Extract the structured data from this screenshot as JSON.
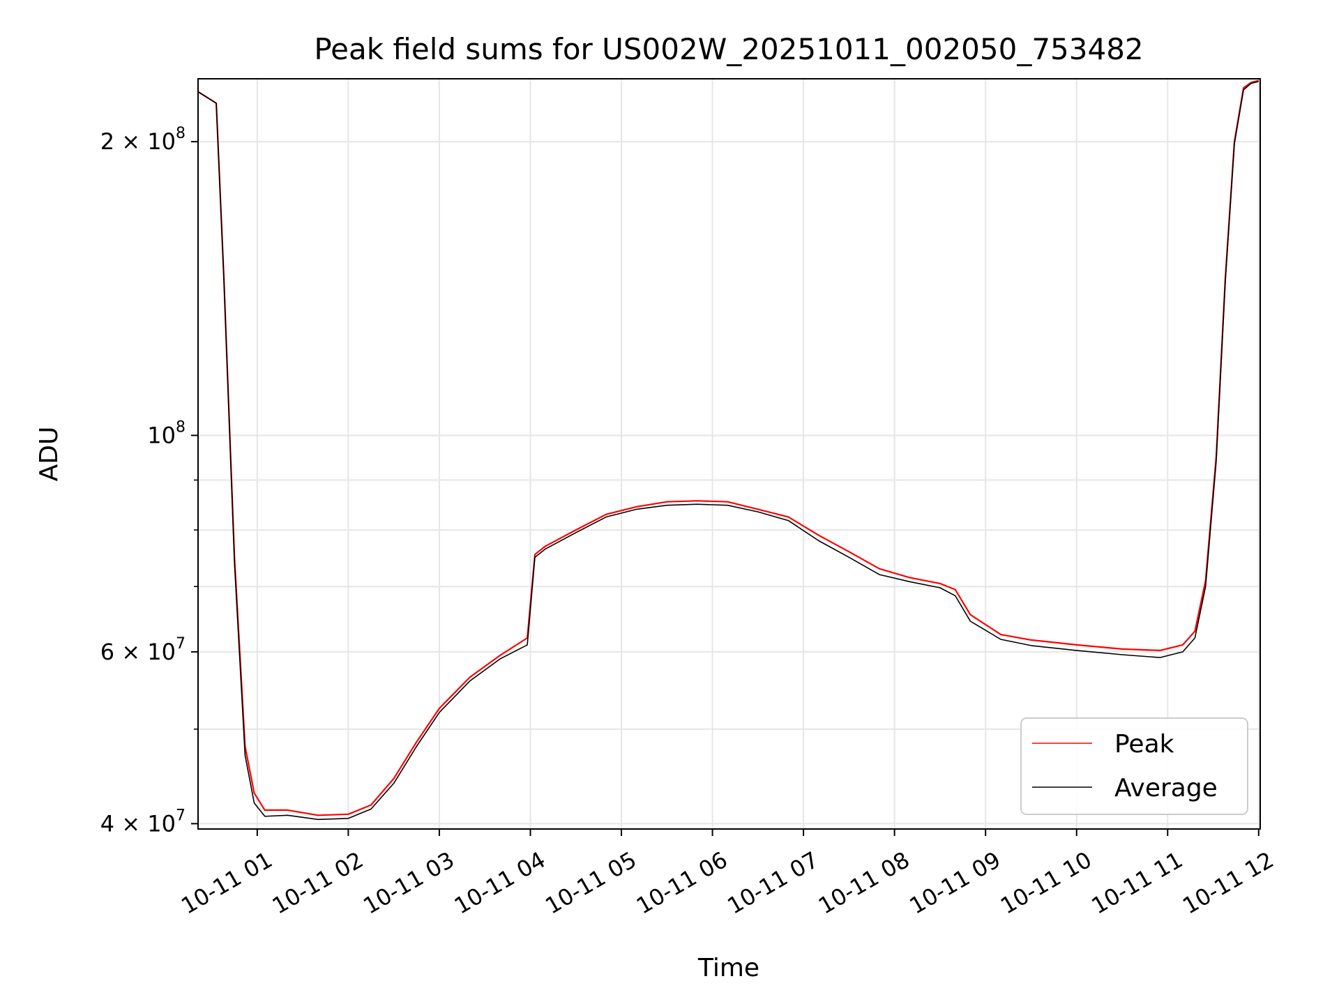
{
  "chart_data": {
    "type": "line",
    "title": "Peak field sums for US002W_20251011_002050_753482",
    "xlabel": "Time",
    "ylabel": "ADU",
    "yscale": "log",
    "xlim": [
      "2025-10-11 00:21",
      "2025-10-11 12:01"
    ],
    "ylim": [
      39500000,
      232000000
    ],
    "x_ticks": [
      {
        "value": "2025-10-11 01:00",
        "label": "10-11 01"
      },
      {
        "value": "2025-10-11 02:00",
        "label": "10-11 02"
      },
      {
        "value": "2025-10-11 03:00",
        "label": "10-11 03"
      },
      {
        "value": "2025-10-11 04:00",
        "label": "10-11 04"
      },
      {
        "value": "2025-10-11 05:00",
        "label": "10-11 05"
      },
      {
        "value": "2025-10-11 06:00",
        "label": "10-11 06"
      },
      {
        "value": "2025-10-11 07:00",
        "label": "10-11 07"
      },
      {
        "value": "2025-10-11 08:00",
        "label": "10-11 08"
      },
      {
        "value": "2025-10-11 09:00",
        "label": "10-11 09"
      },
      {
        "value": "2025-10-11 10:00",
        "label": "10-11 10"
      },
      {
        "value": "2025-10-11 11:00",
        "label": "10-11 11"
      },
      {
        "value": "2025-10-11 12:00",
        "label": "10-11 12"
      }
    ],
    "y_major_ticks": [
      {
        "value": 40000000,
        "base": "4",
        "exp": "7"
      },
      {
        "value": 60000000,
        "base": "6",
        "exp": "7"
      },
      {
        "value": 100000000,
        "base": "",
        "exp": "8"
      },
      {
        "value": 200000000,
        "base": "2",
        "exp": "8"
      }
    ],
    "y_minor_ticks": [
      50000000,
      70000000,
      80000000,
      90000000
    ],
    "grid": true,
    "legend_position": "lower-right",
    "series": [
      {
        "name": "Peak",
        "color": "#ff0000",
        "x": [
          "2025-10-11 00:21",
          "2025-10-11 00:33",
          "2025-10-11 00:38",
          "2025-10-11 00:45",
          "2025-10-11 00:52",
          "2025-10-11 00:58",
          "2025-10-11 01:05",
          "2025-10-11 01:20",
          "2025-10-11 01:40",
          "2025-10-11 02:00",
          "2025-10-11 02:15",
          "2025-10-11 02:30",
          "2025-10-11 02:45",
          "2025-10-11 03:00",
          "2025-10-11 03:20",
          "2025-10-11 03:40",
          "2025-10-11 03:58",
          "2025-10-11 04:03",
          "2025-10-11 04:10",
          "2025-10-11 04:30",
          "2025-10-11 04:50",
          "2025-10-11 05:10",
          "2025-10-11 05:30",
          "2025-10-11 05:50",
          "2025-10-11 06:10",
          "2025-10-11 06:30",
          "2025-10-11 06:50",
          "2025-10-11 07:10",
          "2025-10-11 07:30",
          "2025-10-11 07:50",
          "2025-10-11 08:10",
          "2025-10-11 08:30",
          "2025-10-11 08:40",
          "2025-10-11 08:50",
          "2025-10-11 09:10",
          "2025-10-11 09:30",
          "2025-10-11 10:00",
          "2025-10-11 10:30",
          "2025-10-11 10:55",
          "2025-10-11 11:10",
          "2025-10-11 11:18",
          "2025-10-11 11:25",
          "2025-10-11 11:32",
          "2025-10-11 11:38",
          "2025-10-11 11:44",
          "2025-10-11 11:50",
          "2025-10-11 11:55",
          "2025-10-11 12:00"
        ],
        "y": [
          225000000,
          219000000,
          145000000,
          75000000,
          48000000,
          43000000,
          41300000,
          41300000,
          40800000,
          40900000,
          41800000,
          44500000,
          48500000,
          52500000,
          56500000,
          59500000,
          62000000,
          75500000,
          77000000,
          80000000,
          83000000,
          84500000,
          85500000,
          85700000,
          85500000,
          84000000,
          82500000,
          79000000,
          76000000,
          73000000,
          71500000,
          70500000,
          69500000,
          65500000,
          62500000,
          61700000,
          61000000,
          60400000,
          60200000,
          61000000,
          63000000,
          71000000,
          95000000,
          145000000,
          200000000,
          227000000,
          230000000,
          231000000
        ]
      },
      {
        "name": "Average",
        "color": "#000000",
        "x": [
          "2025-10-11 00:21",
          "2025-10-11 00:33",
          "2025-10-11 00:38",
          "2025-10-11 00:45",
          "2025-10-11 00:52",
          "2025-10-11 00:58",
          "2025-10-11 01:05",
          "2025-10-11 01:20",
          "2025-10-11 01:40",
          "2025-10-11 02:00",
          "2025-10-11 02:15",
          "2025-10-11 02:30",
          "2025-10-11 02:45",
          "2025-10-11 03:00",
          "2025-10-11 03:20",
          "2025-10-11 03:40",
          "2025-10-11 03:58",
          "2025-10-11 04:03",
          "2025-10-11 04:10",
          "2025-10-11 04:30",
          "2025-10-11 04:50",
          "2025-10-11 05:10",
          "2025-10-11 05:30",
          "2025-10-11 05:50",
          "2025-10-11 06:10",
          "2025-10-11 06:30",
          "2025-10-11 06:50",
          "2025-10-11 07:10",
          "2025-10-11 07:30",
          "2025-10-11 07:50",
          "2025-10-11 08:10",
          "2025-10-11 08:30",
          "2025-10-11 08:40",
          "2025-10-11 08:50",
          "2025-10-11 09:10",
          "2025-10-11 09:30",
          "2025-10-11 10:00",
          "2025-10-11 10:30",
          "2025-10-11 10:55",
          "2025-10-11 11:10",
          "2025-10-11 11:18",
          "2025-10-11 11:25",
          "2025-10-11 11:32",
          "2025-10-11 11:38",
          "2025-10-11 11:44",
          "2025-10-11 11:50",
          "2025-10-11 11:55",
          "2025-10-11 12:00"
        ],
        "y": [
          225000000,
          219000000,
          145000000,
          74000000,
          47000000,
          42000000,
          40700000,
          40800000,
          40400000,
          40500000,
          41400000,
          44000000,
          48000000,
          52000000,
          56000000,
          59000000,
          61000000,
          75000000,
          76500000,
          79500000,
          82500000,
          84000000,
          84800000,
          85000000,
          84800000,
          83500000,
          81800000,
          78000000,
          75000000,
          72000000,
          70800000,
          69800000,
          68500000,
          64500000,
          61800000,
          60900000,
          60200000,
          59600000,
          59200000,
          60000000,
          62000000,
          70000000,
          94000000,
          144000000,
          199000000,
          226000000,
          229500000,
          230500000
        ]
      }
    ]
  }
}
